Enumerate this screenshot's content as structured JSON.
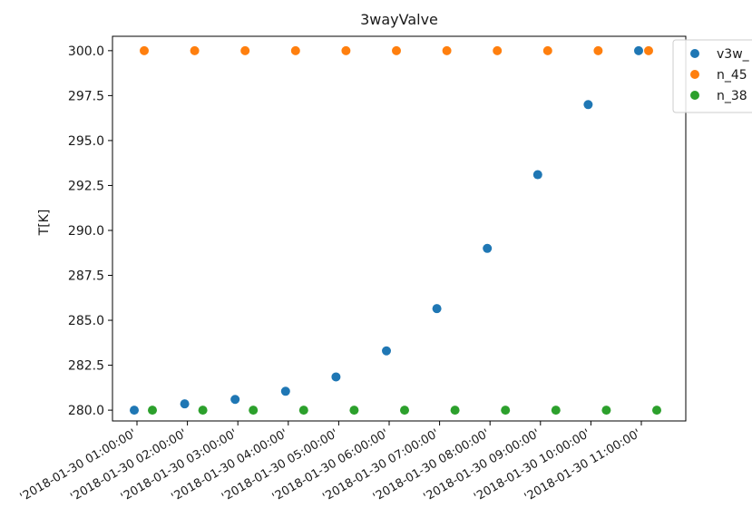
{
  "chart_data": {
    "type": "scatter",
    "title": "3wayValve",
    "xlabel": "",
    "ylabel": "T[K]",
    "categories": [
      "'2018-01-30 01:00:00'",
      "'2018-01-30 02:00:00'",
      "'2018-01-30 03:00:00'",
      "'2018-01-30 04:00:00'",
      "'2018-01-30 05:00:00'",
      "'2018-01-30 06:00:00'",
      "'2018-01-30 07:00:00'",
      "'2018-01-30 08:00:00'",
      "'2018-01-30 09:00:00'",
      "'2018-01-30 10:00:00'",
      "'2018-01-30 11:00:00'"
    ],
    "ylim": [
      279.4,
      300.8
    ],
    "yticks": [
      280.0,
      282.5,
      285.0,
      287.5,
      290.0,
      292.5,
      295.0,
      297.5,
      300.0
    ],
    "ytick_labels": [
      "280.0",
      "282.5",
      "285.0",
      "287.5",
      "290.0",
      "292.5",
      "295.0",
      "297.5",
      "300.0"
    ],
    "grid": false,
    "legend_position": "top-right (clipped at edge)",
    "series": [
      {
        "name": "v3w_",
        "color": "#1f77b4",
        "values": [
          280.0,
          280.35,
          280.6,
          281.05,
          281.85,
          283.3,
          285.65,
          289.0,
          293.1,
          297.0,
          300.0
        ]
      },
      {
        "name": "n_45",
        "color": "#ff7f0e",
        "values": [
          300.0,
          300.0,
          300.0,
          300.0,
          300.0,
          300.0,
          300.0,
          300.0,
          300.0,
          300.0,
          300.0
        ]
      },
      {
        "name": "n_38",
        "color": "#2ca02c",
        "values": [
          280.0,
          280.0,
          280.0,
          280.0,
          280.0,
          280.0,
          280.0,
          280.0,
          280.0,
          280.0,
          280.0
        ]
      }
    ]
  }
}
